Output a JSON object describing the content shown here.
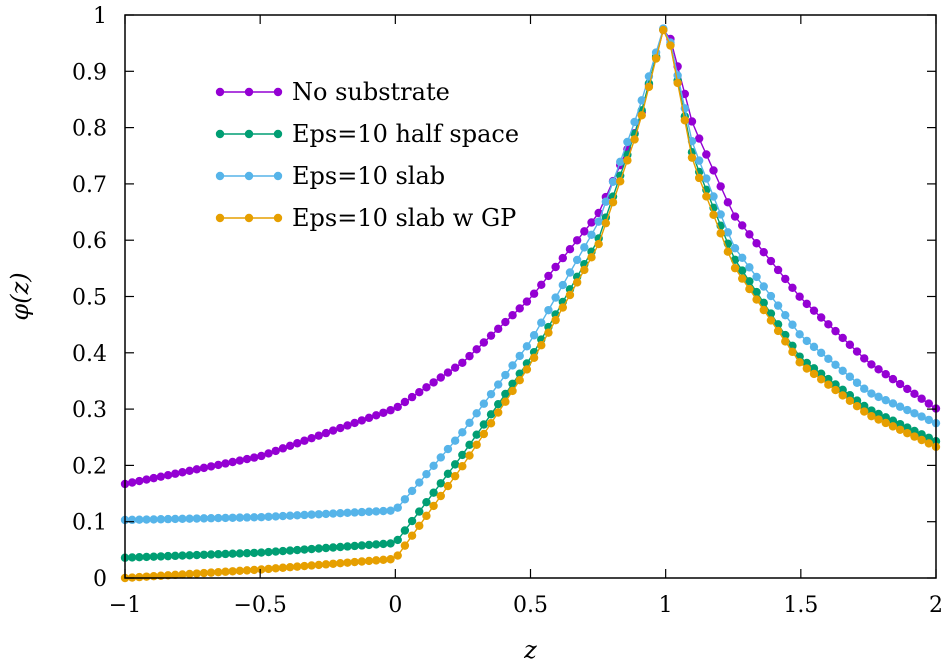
{
  "chart_data": {
    "type": "line",
    "title": "",
    "xlabel": "z",
    "ylabel": "φ(z)",
    "xlim": [
      -1,
      2
    ],
    "ylim": [
      0,
      1
    ],
    "xticks": [
      -1,
      -0.5,
      0,
      0.5,
      1,
      1.5,
      2
    ],
    "xtick_labels": [
      "−1",
      "−0.5",
      "0",
      "0.5",
      "1",
      "1.5",
      "2"
    ],
    "yticks": [
      0,
      0.1,
      0.2,
      0.3,
      0.4,
      0.5,
      0.6,
      0.7,
      0.8,
      0.9,
      1
    ],
    "ytick_labels": [
      "0",
      "0.1",
      "0.2",
      "0.3",
      "0.4",
      "0.5",
      "0.6",
      "0.7",
      "0.8",
      "0.9",
      "1"
    ],
    "grid": false,
    "legend_position": "top-left",
    "series": [
      {
        "name": "No substrate",
        "color": "#9400d3",
        "x": [
          -1.0,
          -0.5,
          0.0,
          0.25,
          0.5,
          0.75,
          0.9,
          1.0,
          1.1,
          1.25,
          1.5,
          1.75,
          2.0
        ],
        "values": [
          0.167,
          0.216,
          0.301,
          0.383,
          0.497,
          0.646,
          0.806,
          0.99,
          0.806,
          0.646,
          0.497,
          0.383,
          0.301
        ]
      },
      {
        "name": "Eps=10 half space",
        "color": "#009e73",
        "x": [
          -1.0,
          -0.5,
          0.0,
          0.25,
          0.5,
          0.75,
          0.9,
          1.0,
          1.1,
          1.25,
          1.5,
          1.75,
          2.0
        ],
        "values": [
          0.036,
          0.045,
          0.062,
          0.22,
          0.39,
          0.6,
          0.81,
          0.99,
          0.75,
          0.57,
          0.39,
          0.3,
          0.243
        ]
      },
      {
        "name": "Eps=10 slab",
        "color": "#56b4e9",
        "x": [
          -1.0,
          -0.5,
          0.0,
          0.25,
          0.5,
          0.75,
          0.9,
          1.0,
          1.1,
          1.25,
          1.5,
          1.75,
          2.0
        ],
        "values": [
          0.103,
          0.108,
          0.12,
          0.26,
          0.42,
          0.63,
          0.83,
          0.99,
          0.77,
          0.59,
          0.43,
          0.33,
          0.275
        ]
      },
      {
        "name": "Eps=10 slab w GP",
        "color": "#e69f00",
        "x": [
          -1.0,
          -0.5,
          0.0,
          0.25,
          0.5,
          0.75,
          0.9,
          1.0,
          1.1,
          1.25,
          1.5,
          1.75,
          2.0
        ],
        "values": [
          0.0,
          0.015,
          0.034,
          0.2,
          0.38,
          0.59,
          0.8,
          0.99,
          0.74,
          0.555,
          0.38,
          0.29,
          0.233
        ]
      }
    ]
  }
}
